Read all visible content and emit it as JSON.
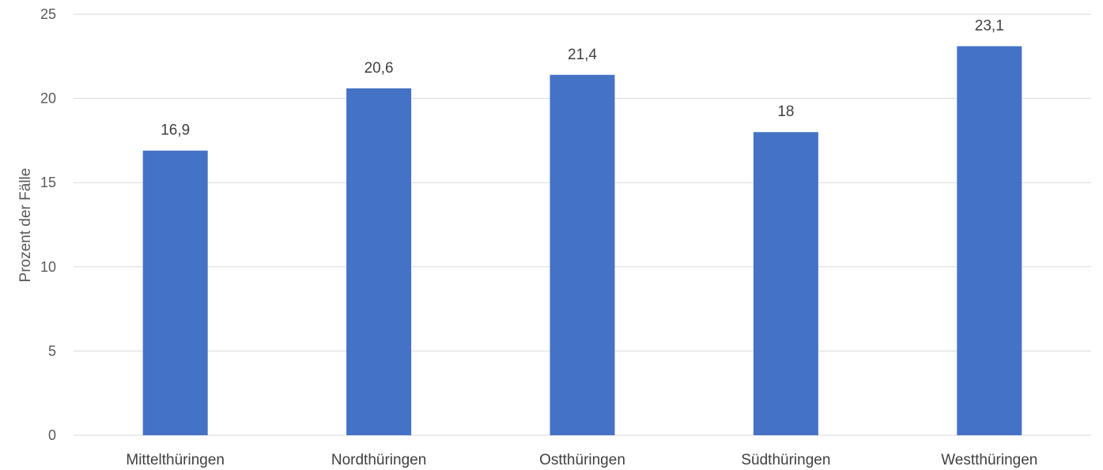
{
  "chart_data": {
    "type": "bar",
    "title": "",
    "xlabel": "",
    "ylabel": "Prozent der Fälle",
    "ylim": [
      0,
      25
    ],
    "yticks": [
      0,
      5,
      10,
      15,
      20,
      25
    ],
    "grid": true,
    "legend": "none",
    "categories": [
      "Mittelthüringen",
      "Nordthüringen",
      "Ostthüringen",
      "Südthüringen",
      "Westthüringen"
    ],
    "values": [
      16.9,
      20.6,
      21.4,
      18,
      23.1
    ],
    "value_labels": [
      "16,9",
      "20,6",
      "21,4",
      "18",
      "23,1"
    ],
    "bar_color": "#4472c4",
    "grid_color": "#d9d9d9"
  }
}
